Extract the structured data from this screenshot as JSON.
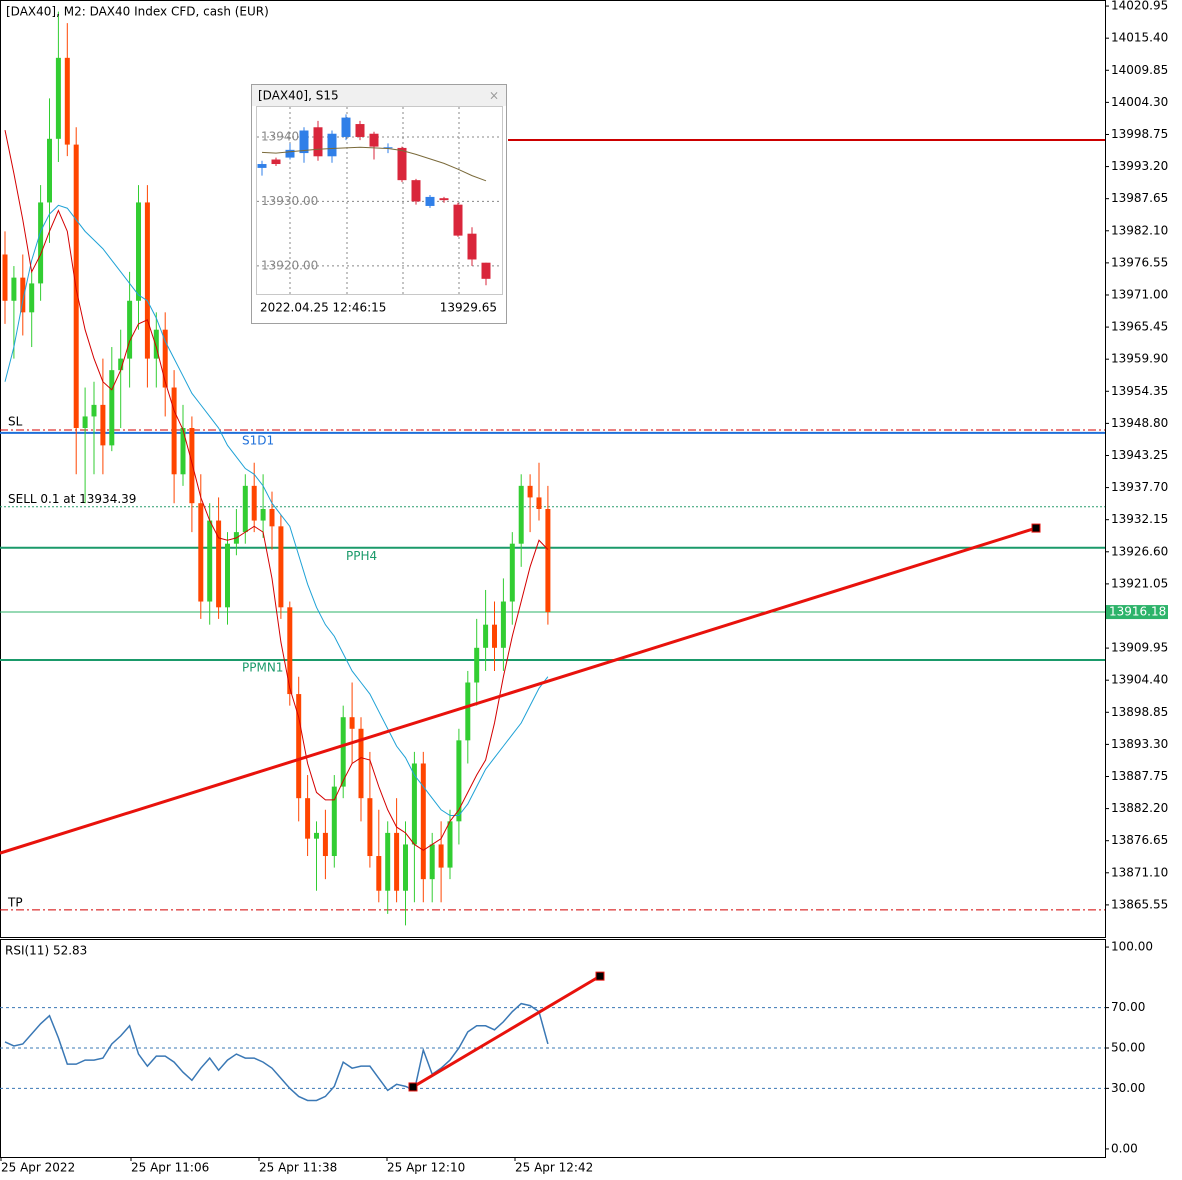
{
  "chart_data": [
    {
      "type": "candlestick",
      "title": "[DAX40], M2:  DAX40 Index CFD, cash (EUR)",
      "up_color": "#32cd32",
      "down_color": "#ff4500",
      "open": [
        13978,
        13970,
        13974,
        13968,
        13973,
        13987,
        13998,
        14012,
        13997,
        13948,
        13950,
        13952,
        13945,
        13958,
        13960,
        13970,
        13987,
        13960,
        13965,
        13955,
        13940,
        13948,
        13935,
        13918,
        13932,
        13917,
        13928,
        13930,
        13938,
        13932,
        13934,
        13931,
        13917,
        13902,
        13884,
        13877,
        13878,
        13874,
        13886,
        13898,
        13896,
        13884,
        13874,
        13868,
        13878,
        13868,
        13876,
        13890,
        13870,
        13876,
        13872,
        13880,
        13894,
        13904,
        13910,
        13914,
        13910,
        13918,
        13928,
        13938,
        13936,
        13934
      ],
      "high": [
        13982,
        13976,
        13978,
        13975,
        13990,
        14005,
        14020,
        14018,
        14000,
        13955,
        13956,
        13960,
        13962,
        13965,
        13975,
        13990,
        13990,
        13968,
        13968,
        13958,
        13952,
        13950,
        13940,
        13935,
        13936,
        13930,
        13934,
        13940,
        13942,
        13940,
        13937,
        13933,
        13918,
        13905,
        13888,
        13880,
        13882,
        13888,
        13900,
        13904,
        13898,
        13892,
        13882,
        13880,
        13884,
        13880,
        13892,
        13892,
        13878,
        13880,
        13882,
        13896,
        13906,
        13915,
        13920,
        13918,
        13922,
        13930,
        13940,
        13940,
        13942,
        13938
      ],
      "low": [
        13966,
        13960,
        13964,
        13962,
        13970,
        13980,
        13994,
        13995,
        13940,
        13935,
        13940,
        13940,
        13944,
        13948,
        13955,
        13965,
        13955,
        13955,
        13950,
        13935,
        13938,
        13930,
        13915,
        13914,
        13915,
        13914,
        13926,
        13928,
        13930,
        13929,
        13927,
        13915,
        13900,
        13880,
        13874,
        13868,
        13870,
        13872,
        13884,
        13890,
        13880,
        13872,
        13866,
        13864,
        13866,
        13862,
        13866,
        13866,
        13866,
        13866,
        13870,
        13876,
        13890,
        13900,
        13906,
        13906,
        13906,
        13914,
        13924,
        13930,
        13932,
        13914
      ],
      "close": [
        13970,
        13974,
        13968,
        13973,
        13987,
        13998,
        14012,
        13997,
        13948,
        13950,
        13952,
        13945,
        13958,
        13960,
        13970,
        13987,
        13960,
        13965,
        13955,
        13940,
        13948,
        13935,
        13918,
        13932,
        13917,
        13928,
        13930,
        13938,
        13932,
        13934,
        13931,
        13917,
        13902,
        13884,
        13877,
        13878,
        13874,
        13886,
        13898,
        13896,
        13884,
        13874,
        13868,
        13878,
        13868,
        13876,
        13890,
        13870,
        13876,
        13872,
        13880,
        13894,
        13904,
        13910,
        13914,
        13910,
        13918,
        13928,
        13938,
        13936,
        13934,
        13916.18
      ],
      "ma_fast": {
        "color": "#d40000",
        "values": [
          13999.5,
          13992,
          13984,
          13975,
          13978,
          13982,
          13985.6,
          13982,
          13972,
          13965,
          13960,
          13956,
          13954.6,
          13958,
          13963,
          13966,
          13966.7,
          13962,
          13956,
          13951,
          13947.7,
          13942,
          13936,
          13932,
          13929,
          13928.6,
          13929,
          13930,
          13931,
          13930,
          13922,
          13911,
          13903,
          13898,
          13890,
          13885,
          13883.7,
          13883.7,
          13887,
          13890,
          13891,
          13890.6,
          13886,
          13882,
          13879,
          13878,
          13876,
          13875,
          13876,
          13877,
          13880,
          13882,
          13885,
          13888,
          13890.6,
          13897,
          13905,
          13912,
          13918,
          13924,
          13928.6,
          13927
        ]
      },
      "ma_slow": {
        "color": "#1fa2d6",
        "values": [
          13956,
          13962,
          13970,
          13977,
          13982,
          13985,
          13986.5,
          13986,
          13984,
          13982,
          13980.5,
          13979,
          13977,
          13975,
          13973,
          13971,
          13970,
          13967,
          13963,
          13960,
          13957,
          13954,
          13952,
          13950,
          13948,
          13945,
          13943,
          13941,
          13940,
          13938,
          13935,
          13933,
          13931,
          13926,
          13921,
          13917,
          13914,
          13912,
          13909,
          13906,
          13904,
          13902,
          13899,
          13896,
          13893,
          13891,
          13888,
          13886,
          13884,
          13882,
          13881,
          13881,
          13883,
          13886,
          13889,
          13891,
          13893,
          13895,
          13897,
          13900,
          13903,
          13905
        ]
      },
      "ylim": [
        13860.0,
        14022.0
      ],
      "yticks": [
        14020.95,
        {
          "value": 14015.4,
          "label": "14015.40"
        },
        14009.85,
        {
          "value": 14004.3,
          "label": "14004.30"
        },
        13998.75,
        {
          "value": 13993.2,
          "label": "13993.20"
        },
        13987.65,
        {
          "value": 13982.1,
          "label": "13982.10"
        },
        13976.55,
        {
          "value": 13971,
          "label": "13971.00"
        },
        13965.45,
        {
          "value": 13959.9,
          "label": "13959.90"
        },
        13954.35,
        {
          "value": 13948.8,
          "label": "13948.80"
        },
        13943.25,
        {
          "value": 13937.7,
          "label": "13937.70"
        },
        13932.15,
        {
          "value": 13926.6,
          "label": "13926.60"
        },
        13921.05,
        13909.95,
        {
          "value": 13904.4,
          "label": "13904.40"
        },
        13898.85,
        {
          "value": 13893.3,
          "label": "13893.30"
        },
        13887.75,
        {
          "value": 13882.2,
          "label": "13882.20"
        },
        13876.65,
        {
          "value": 13871.1,
          "label": "13871.10"
        },
        13865.55
      ],
      "xticks": [
        "25 Apr 2022",
        "25 Apr 11:06",
        "25 Apr 11:38",
        "25 Apr 12:10",
        "25 Apr 12:42"
      ],
      "levels": [
        {
          "label": "SL",
          "value": 13947.65,
          "color": "#d40000",
          "style": "dashdot"
        },
        {
          "label": "S1D1",
          "value": 13947.15,
          "color": "#1e6fd9",
          "style": "solid"
        },
        {
          "label": "SELL 0.1 at 13934.39",
          "value": 13934.39,
          "color": "#2a9d6f",
          "style": "dotted"
        },
        {
          "label": "PPH4",
          "value": 13927.3,
          "color": "#1a9a6a",
          "style": "solid"
        },
        {
          "label": "PPMN1",
          "value": 13907.9,
          "color": "#1a9a6a",
          "style": "solid"
        },
        {
          "value": 13997.8,
          "color": "#cc0000",
          "style": "solid"
        },
        {
          "label": "TP",
          "value": 13864.7,
          "color": "#d40000",
          "style": "dashdot"
        }
      ],
      "current_price": {
        "value": 13916.18,
        "color": "#2db36a"
      },
      "trendline": {
        "color": "#e8120c",
        "values": [
          13874.5,
          13930.7
        ]
      }
    },
    {
      "type": "line",
      "title": "RSI(11) 52.83",
      "color": "#3a78b5",
      "values": [
        53,
        51,
        52,
        57,
        62,
        66,
        55,
        42,
        42,
        44,
        44,
        45,
        52,
        56,
        61,
        47,
        41,
        46,
        46,
        43,
        38,
        34,
        40,
        45,
        39,
        44,
        47,
        45,
        45,
        43,
        40,
        35,
        30,
        26,
        24,
        24,
        26,
        31,
        43,
        40,
        41,
        41,
        35,
        29,
        32,
        31,
        29,
        49,
        37,
        40,
        44,
        50,
        58,
        61,
        61,
        59,
        63,
        68,
        72,
        71,
        68,
        52
      ],
      "ylim": [
        -4,
        103.5
      ],
      "yticks": [
        {
          "value": 100,
          "label": "100.00"
        },
        {
          "value": 70,
          "label": "70.00"
        },
        {
          "value": 50,
          "label": "50.00"
        },
        {
          "value": 30,
          "label": "30.00"
        },
        {
          "value": 0,
          "label": "0.00"
        }
      ],
      "levels": [
        70,
        50,
        30
      ],
      "trendline": {
        "color": "#e8120c",
        "values": [
          30.7,
          85.6
        ]
      }
    },
    {
      "type": "candlestick",
      "title": "[DAX40], S15",
      "up_color": "#2f7fe8",
      "down_color": "#d9263b",
      "open": [
        13935.2,
        13936.5,
        13936.8,
        13937.5,
        13941.5,
        13937,
        13940,
        13942,
        13940.5,
        13938.3,
        13938.3,
        13933.3,
        13929.3,
        13930.5,
        13929.5,
        13925,
        13920.5
      ],
      "high": [
        13936.3,
        13936.8,
        13939,
        13941.5,
        13942.5,
        13941,
        13943.5,
        13942.5,
        13940.8,
        13939,
        13938.5,
        13933.5,
        13931,
        13930.7,
        13929.8,
        13926,
        13920.5
      ],
      "low": [
        13934,
        13935.5,
        13936.5,
        13936,
        13936.3,
        13936,
        13939.5,
        13939.5,
        13936.5,
        13937.5,
        13933,
        13929.5,
        13929,
        13929.8,
        13924.5,
        13920,
        13917
      ],
      "close": [
        13935.8,
        13935.8,
        13938,
        13941,
        13937,
        13940.5,
        13943,
        13940,
        13938.5,
        13938.4,
        13933.3,
        13930,
        13930.7,
        13930.2,
        13924.7,
        13921,
        13918
      ],
      "ma": {
        "color": "#7a6a3a",
        "values": [
          13937.6,
          13937.5,
          13937.7,
          13937.9,
          13938.1,
          13938.2,
          13938.3,
          13938.4,
          13938.3,
          13938.2,
          13937.9,
          13937.3,
          13936.6,
          13935.9,
          13935,
          13934,
          13933.2
        ]
      },
      "ylim": [
        13915.8,
        13944.8
      ],
      "yticks": [
        13940,
        {
          "value": 13930,
          "label": "13930.00"
        },
        {
          "value": 13920,
          "label": "13920.00"
        }
      ],
      "time": "2022.04.25 12:46:15",
      "price": 13929.65
    }
  ]
}
